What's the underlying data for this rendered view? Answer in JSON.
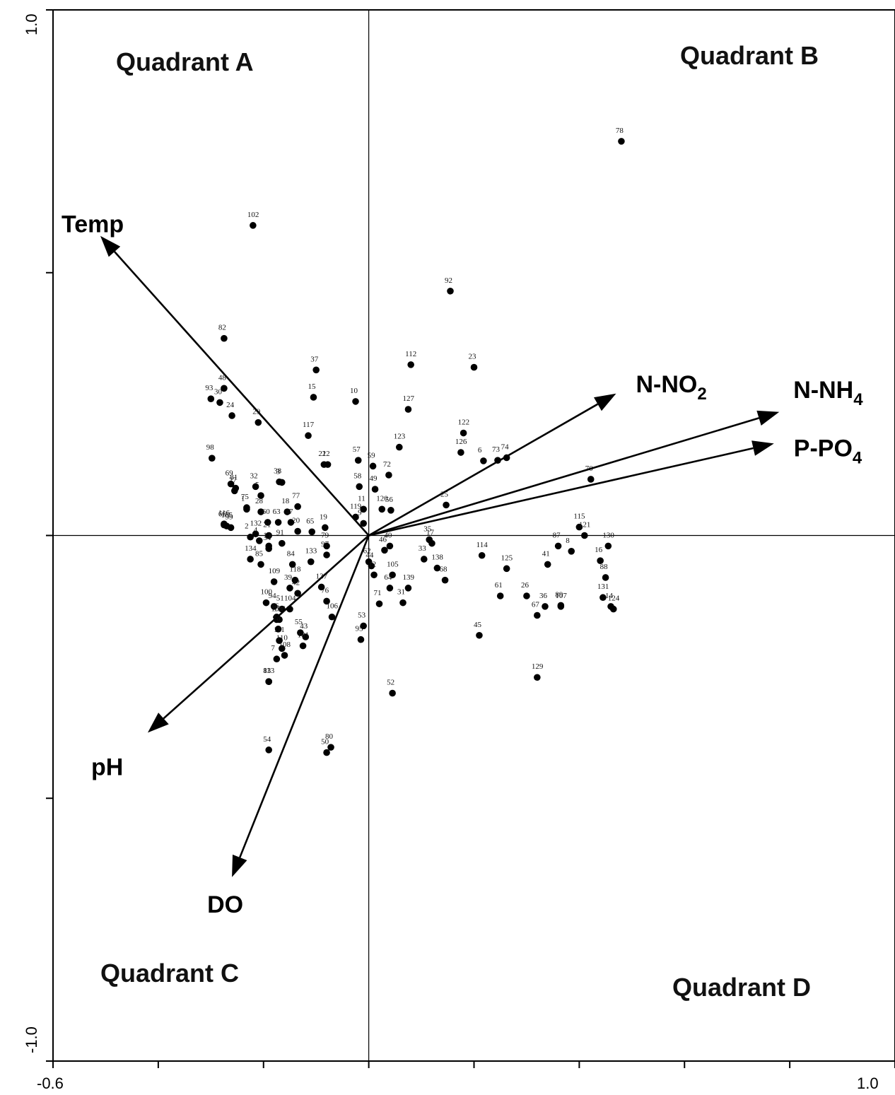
{
  "chart_data": {
    "type": "scatter",
    "title": "",
    "xlabel": "",
    "ylabel": "",
    "xlim": [
      -0.6,
      1.0
    ],
    "ylim": [
      -1.0,
      1.0
    ],
    "grid": false,
    "legend": "none",
    "x_tick_labels": [
      "-0.6",
      "1.0"
    ],
    "y_tick_labels": [
      "1.0",
      "-1.0"
    ],
    "quadrants": [
      {
        "key": "A",
        "label": "Quadrant A"
      },
      {
        "key": "B",
        "label": "Quadrant B"
      },
      {
        "key": "C",
        "label": "Quadrant C"
      },
      {
        "key": "D",
        "label": "Quadrant D"
      }
    ],
    "vectors": [
      {
        "key": "temp",
        "label": "Temp",
        "sub": "",
        "tail": "",
        "x": -0.51,
        "y": 0.57
      },
      {
        "key": "no2",
        "label": "N-NO",
        "sub": "2",
        "tail": "",
        "x": 0.47,
        "y": 0.27
      },
      {
        "key": "nh4",
        "label": "N-NH",
        "sub": "4",
        "tail": "",
        "x": 0.78,
        "y": 0.235
      },
      {
        "key": "po4",
        "label": "P-PO",
        "sub": "4",
        "tail": "",
        "x": 0.77,
        "y": 0.175
      },
      {
        "key": "ph",
        "label": "pH",
        "sub": "",
        "tail": "",
        "x": -0.42,
        "y": -0.375
      },
      {
        "key": "do",
        "label": "DO",
        "sub": "",
        "tail": "",
        "x": -0.26,
        "y": -0.65
      }
    ],
    "points": [
      {
        "id": "78",
        "x": 0.48,
        "y": 0.75
      },
      {
        "id": "102",
        "x": -0.22,
        "y": 0.59
      },
      {
        "id": "92",
        "x": 0.155,
        "y": 0.465
      },
      {
        "id": "82",
        "x": -0.275,
        "y": 0.375
      },
      {
        "id": "112",
        "x": 0.08,
        "y": 0.325
      },
      {
        "id": "23",
        "x": 0.2,
        "y": 0.32
      },
      {
        "id": "37",
        "x": -0.1,
        "y": 0.315
      },
      {
        "id": "48",
        "x": -0.275,
        "y": 0.28
      },
      {
        "id": "93",
        "x": -0.3,
        "y": 0.26
      },
      {
        "id": "30",
        "x": -0.283,
        "y": 0.253
      },
      {
        "id": "15",
        "x": -0.105,
        "y": 0.263
      },
      {
        "id": "10",
        "x": -0.025,
        "y": 0.255
      },
      {
        "id": "24",
        "x": -0.26,
        "y": 0.228
      },
      {
        "id": "29",
        "x": -0.21,
        "y": 0.215
      },
      {
        "id": "127",
        "x": 0.075,
        "y": 0.24
      },
      {
        "id": "117",
        "x": -0.115,
        "y": 0.19
      },
      {
        "id": "122",
        "x": 0.18,
        "y": 0.195
      },
      {
        "id": "123",
        "x": 0.058,
        "y": 0.168
      },
      {
        "id": "126",
        "x": 0.175,
        "y": 0.158
      },
      {
        "id": "74",
        "x": 0.262,
        "y": 0.148
      },
      {
        "id": "73",
        "x": 0.245,
        "y": 0.143
      },
      {
        "id": "6",
        "x": 0.218,
        "y": 0.142
      },
      {
        "id": "98",
        "x": -0.298,
        "y": 0.147
      },
      {
        "id": "21",
        "x": -0.085,
        "y": 0.135
      },
      {
        "id": "22",
        "x": -0.078,
        "y": 0.135
      },
      {
        "id": "57",
        "x": -0.02,
        "y": 0.143
      },
      {
        "id": "59",
        "x": 0.008,
        "y": 0.132
      },
      {
        "id": "72",
        "x": 0.038,
        "y": 0.115
      },
      {
        "id": "69",
        "x": -0.262,
        "y": 0.098
      },
      {
        "id": "81",
        "x": -0.253,
        "y": 0.09
      },
      {
        "id": "32",
        "x": -0.215,
        "y": 0.093
      },
      {
        "id": "38",
        "x": -0.17,
        "y": 0.102
      },
      {
        "id": "3",
        "x": -0.165,
        "y": 0.101
      },
      {
        "id": "58",
        "x": -0.018,
        "y": 0.093
      },
      {
        "id": "49",
        "x": 0.012,
        "y": 0.088
      },
      {
        "id": "70",
        "x": 0.422,
        "y": 0.107
      },
      {
        "id": "27",
        "x": -0.255,
        "y": 0.085
      },
      {
        "id": "5",
        "x": -0.205,
        "y": 0.076
      },
      {
        "id": "25",
        "x": 0.147,
        "y": 0.058
      },
      {
        "id": "75",
        "x": -0.232,
        "y": 0.053
      },
      {
        "id": "1",
        "x": -0.232,
        "y": 0.05
      },
      {
        "id": "28",
        "x": -0.205,
        "y": 0.045
      },
      {
        "id": "18",
        "x": -0.155,
        "y": 0.045
      },
      {
        "id": "77",
        "x": -0.135,
        "y": 0.055
      },
      {
        "id": "120",
        "x": 0.025,
        "y": 0.05
      },
      {
        "id": "56",
        "x": 0.042,
        "y": 0.048
      },
      {
        "id": "11",
        "x": -0.01,
        "y": 0.05
      },
      {
        "id": "119",
        "x": -0.025,
        "y": 0.035
      },
      {
        "id": "66",
        "x": -0.275,
        "y": 0.02
      },
      {
        "id": "116",
        "x": -0.275,
        "y": 0.022
      },
      {
        "id": "99",
        "x": -0.262,
        "y": 0.015
      },
      {
        "id": "135",
        "x": -0.27,
        "y": 0.018
      },
      {
        "id": "60",
        "x": -0.192,
        "y": 0.025
      },
      {
        "id": "63",
        "x": -0.172,
        "y": 0.025
      },
      {
        "id": "47",
        "x": -0.148,
        "y": 0.025
      },
      {
        "id": "19",
        "x": -0.083,
        "y": 0.015
      },
      {
        "id": "65",
        "x": -0.108,
        "y": 0.007
      },
      {
        "id": "9",
        "x": -0.01,
        "y": 0.023
      },
      {
        "id": "132",
        "x": -0.215,
        "y": 0.003
      },
      {
        "id": "21b",
        "x": -0.19,
        "y": 0.0
      },
      {
        "id": "20",
        "x": -0.135,
        "y": 0.008
      },
      {
        "id": "115",
        "x": 0.4,
        "y": 0.016
      },
      {
        "id": "121",
        "x": 0.41,
        "y": 0.0
      },
      {
        "id": "2",
        "x": -0.225,
        "y": -0.003
      },
      {
        "id": "4",
        "x": -0.208,
        "y": -0.01
      },
      {
        "id": "13",
        "x": -0.19,
        "y": -0.02
      },
      {
        "id": "91",
        "x": -0.165,
        "y": -0.015
      },
      {
        "id": "79",
        "x": -0.08,
        "y": -0.02
      },
      {
        "id": "40",
        "x": 0.04,
        "y": -0.02
      },
      {
        "id": "35",
        "x": 0.115,
        "y": -0.008
      },
      {
        "id": "17",
        "x": 0.12,
        "y": -0.015
      },
      {
        "id": "114",
        "x": 0.215,
        "y": -0.038
      },
      {
        "id": "87",
        "x": 0.36,
        "y": -0.02
      },
      {
        "id": "8",
        "x": 0.385,
        "y": -0.03
      },
      {
        "id": "130",
        "x": 0.455,
        "y": -0.02
      },
      {
        "id": "34",
        "x": -0.19,
        "y": -0.025
      },
      {
        "id": "133",
        "x": -0.11,
        "y": -0.05
      },
      {
        "id": "46",
        "x": 0.03,
        "y": -0.028
      },
      {
        "id": "134",
        "x": -0.225,
        "y": -0.045
      },
      {
        "id": "85",
        "x": -0.205,
        "y": -0.055
      },
      {
        "id": "84",
        "x": -0.145,
        "y": -0.055
      },
      {
        "id": "97",
        "x": -0.08,
        "y": -0.037
      },
      {
        "id": "62",
        "x": 0.0,
        "y": -0.05
      },
      {
        "id": "44",
        "x": 0.005,
        "y": -0.058
      },
      {
        "id": "105",
        "x": 0.045,
        "y": -0.075
      },
      {
        "id": "33",
        "x": 0.105,
        "y": -0.045
      },
      {
        "id": "138",
        "x": 0.13,
        "y": -0.062
      },
      {
        "id": "125",
        "x": 0.262,
        "y": -0.063
      },
      {
        "id": "16",
        "x": 0.44,
        "y": -0.048
      },
      {
        "id": "88",
        "x": 0.45,
        "y": -0.08
      },
      {
        "id": "118",
        "x": -0.14,
        "y": -0.085
      },
      {
        "id": "12",
        "x": 0.01,
        "y": -0.075
      },
      {
        "id": "64",
        "x": 0.04,
        "y": -0.1
      },
      {
        "id": "139",
        "x": 0.075,
        "y": -0.1
      },
      {
        "id": "68",
        "x": 0.145,
        "y": -0.085
      },
      {
        "id": "41",
        "x": 0.34,
        "y": -0.055
      },
      {
        "id": "109",
        "x": -0.18,
        "y": -0.088
      },
      {
        "id": "39",
        "x": -0.15,
        "y": -0.1
      },
      {
        "id": "42",
        "x": -0.135,
        "y": -0.11
      },
      {
        "id": "137",
        "x": -0.09,
        "y": -0.098
      },
      {
        "id": "26",
        "x": 0.3,
        "y": -0.115
      },
      {
        "id": "36",
        "x": 0.335,
        "y": -0.135
      },
      {
        "id": "131",
        "x": 0.445,
        "y": -0.118
      },
      {
        "id": "14",
        "x": 0.46,
        "y": -0.135
      },
      {
        "id": "100",
        "x": -0.195,
        "y": -0.128
      },
      {
        "id": "94",
        "x": -0.18,
        "y": -0.135
      },
      {
        "id": "51",
        "x": -0.165,
        "y": -0.14
      },
      {
        "id": "86",
        "x": -0.175,
        "y": -0.155
      },
      {
        "id": "104",
        "x": -0.15,
        "y": -0.14
      },
      {
        "id": "76",
        "x": -0.08,
        "y": -0.125
      },
      {
        "id": "31",
        "x": 0.065,
        "y": -0.128
      },
      {
        "id": "61",
        "x": 0.25,
        "y": -0.115
      },
      {
        "id": "89",
        "x": 0.365,
        "y": -0.133
      },
      {
        "id": "124",
        "x": 0.465,
        "y": -0.14
      },
      {
        "id": "136",
        "x": -0.17,
        "y": -0.16
      },
      {
        "id": "103",
        "x": -0.175,
        "y": -0.16
      },
      {
        "id": "96",
        "x": -0.172,
        "y": -0.178
      },
      {
        "id": "55",
        "x": -0.13,
        "y": -0.185
      },
      {
        "id": "106",
        "x": -0.07,
        "y": -0.155
      },
      {
        "id": "53",
        "x": -0.01,
        "y": -0.172
      },
      {
        "id": "71",
        "x": 0.02,
        "y": -0.13
      },
      {
        "id": "67",
        "x": 0.32,
        "y": -0.152
      },
      {
        "id": "107",
        "x": 0.365,
        "y": -0.135
      },
      {
        "id": "111",
        "x": -0.17,
        "y": -0.2
      },
      {
        "id": "110",
        "x": -0.165,
        "y": -0.215
      },
      {
        "id": "43",
        "x": -0.12,
        "y": -0.193
      },
      {
        "id": "101",
        "x": -0.125,
        "y": -0.21
      },
      {
        "id": "95",
        "x": -0.015,
        "y": -0.198
      },
      {
        "id": "45",
        "x": 0.21,
        "y": -0.19
      },
      {
        "id": "7",
        "x": -0.175,
        "y": -0.235
      },
      {
        "id": "108",
        "x": -0.16,
        "y": -0.228
      },
      {
        "id": "113",
        "x": -0.19,
        "y": -0.278
      },
      {
        "id": "83",
        "x": -0.19,
        "y": -0.278
      },
      {
        "id": "52",
        "x": 0.045,
        "y": -0.3
      },
      {
        "id": "129",
        "x": 0.32,
        "y": -0.27
      },
      {
        "id": "54",
        "x": -0.19,
        "y": -0.408
      },
      {
        "id": "80",
        "x": -0.072,
        "y": -0.403
      },
      {
        "id": "50",
        "x": -0.08,
        "y": -0.413
      }
    ]
  }
}
